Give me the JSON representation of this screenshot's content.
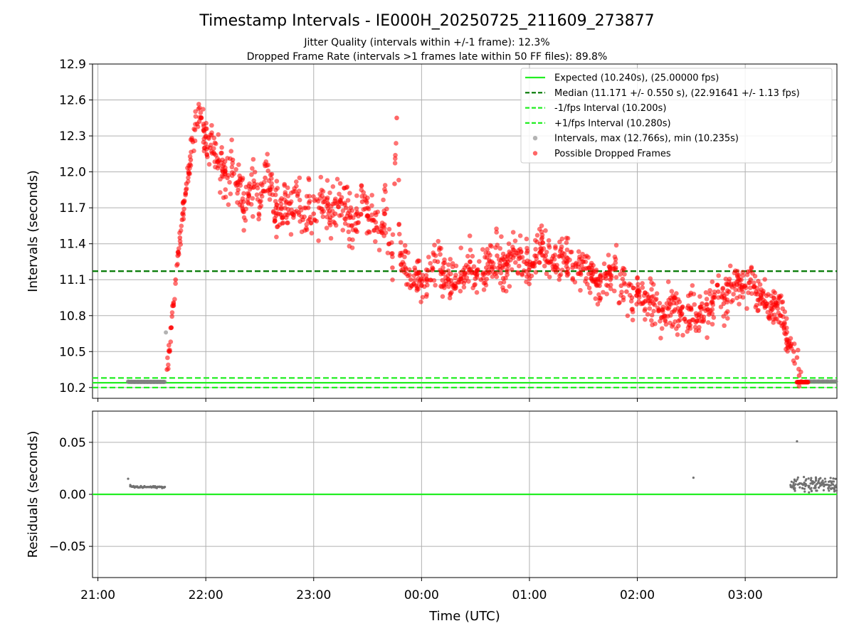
{
  "title": "Timestamp Intervals - IE000H_20250725_211609_273877",
  "subtitle_1": "Jitter Quality (intervals within +/-1 frame): 12.3%",
  "subtitle_2": "Dropped Frame Rate (intervals >1 frames late within 50 FF files): 89.8%",
  "colors": {
    "expected": "#22ee22",
    "median": "#007700",
    "bounds": "#22ee22",
    "intervals": "#808080",
    "dropped": "#ff0000",
    "grid": "#b0b0b0"
  },
  "chart_data": [
    {
      "type": "scatter",
      "name": "intervals",
      "xlabel": "",
      "ylabel": "Intervals (seconds)",
      "x_unit": "hours since 21:00 UTC",
      "xlim": [
        20.95,
        27.85
      ],
      "ylim": [
        10.11,
        12.9
      ],
      "yticks": [
        10.2,
        10.5,
        10.8,
        11.1,
        11.4,
        11.7,
        12.0,
        12.3,
        12.6,
        12.9
      ],
      "ytick_labels": [
        "10.2",
        "10.5",
        "10.8",
        "11.1",
        "11.4",
        "11.7",
        "12.0",
        "12.3",
        "12.6",
        "12.9"
      ],
      "grid": true,
      "legend_position": "top-right",
      "hlines": [
        {
          "label": "Expected (10.240s), (25.00000 fps)",
          "y": 10.24,
          "style": "solid",
          "color": "#22ee22"
        },
        {
          "label": "Median (11.171 +/- 0.550 s), (22.91641 +/- 1.13 fps)",
          "y": 11.171,
          "style": "dashed",
          "color": "#007700"
        },
        {
          "label": "-1/fps Interval (10.200s)",
          "y": 10.2,
          "style": "dashed",
          "color": "#22ee22"
        },
        {
          "label": "+1/fps Interval (10.280s)",
          "y": 10.28,
          "style": "dashed",
          "color": "#22ee22"
        }
      ],
      "series": [
        {
          "name": "Intervals, max (12.766s), min (10.235s)",
          "color": "#808080",
          "approximate": true,
          "x": [
            21.28,
            21.31,
            21.34,
            21.37,
            21.4,
            21.43,
            21.46,
            21.49,
            21.52,
            21.55,
            21.58,
            21.61,
            21.63,
            27.56,
            27.6,
            27.64,
            27.68,
            27.72,
            27.76,
            27.8,
            27.84
          ],
          "y": [
            10.25,
            10.248,
            10.247,
            10.247,
            10.247,
            10.247,
            10.247,
            10.247,
            10.247,
            10.247,
            10.247,
            10.247,
            10.66,
            10.25,
            10.25,
            10.25,
            10.25,
            10.25,
            10.25,
            10.25,
            10.25
          ]
        },
        {
          "name": "Possible Dropped Frames",
          "color": "#ff0000",
          "approximate": true,
          "x": [
            21.64,
            21.66,
            21.68,
            21.7,
            21.72,
            21.74,
            21.76,
            21.78,
            21.8,
            21.82,
            21.84,
            21.86,
            21.88,
            21.9,
            21.92,
            21.94,
            21.96,
            21.98,
            22.0,
            22.04,
            22.08,
            22.12,
            22.16,
            22.2,
            22.25,
            22.3,
            22.35,
            22.4,
            22.45,
            22.5,
            22.55,
            22.6,
            22.65,
            22.7,
            22.75,
            22.8,
            22.85,
            22.9,
            22.95,
            23.0,
            23.05,
            23.1,
            23.15,
            23.2,
            23.25,
            23.3,
            23.35,
            23.4,
            23.45,
            23.5,
            23.55,
            23.6,
            23.63,
            23.66,
            23.7,
            23.73,
            23.75,
            23.77,
            23.8,
            23.85,
            23.9,
            23.95,
            24.0,
            24.05,
            24.1,
            24.15,
            24.2,
            24.25,
            24.3,
            24.35,
            24.4,
            24.45,
            24.5,
            24.55,
            24.6,
            24.65,
            24.7,
            24.75,
            24.8,
            24.85,
            24.9,
            24.95,
            25.0,
            25.05,
            25.1,
            25.15,
            25.2,
            25.25,
            25.3,
            25.35,
            25.4,
            25.45,
            25.5,
            25.55,
            25.6,
            25.65,
            25.7,
            25.75,
            25.8,
            25.85,
            25.9,
            25.95,
            26.0,
            26.05,
            26.1,
            26.15,
            26.2,
            26.25,
            26.3,
            26.35,
            26.4,
            26.45,
            26.5,
            26.55,
            26.6,
            26.65,
            26.7,
            26.75,
            26.8,
            26.85,
            26.9,
            26.95,
            27.0,
            27.05,
            27.1,
            27.15,
            27.2,
            27.25,
            27.3,
            27.33,
            27.36,
            27.39,
            27.42,
            27.45,
            27.48,
            27.5,
            27.52
          ],
          "y": [
            10.35,
            10.5,
            10.7,
            10.9,
            11.1,
            11.3,
            11.45,
            11.6,
            11.75,
            11.9,
            12.0,
            12.1,
            12.25,
            12.35,
            12.4,
            12.42,
            12.45,
            12.35,
            12.3,
            12.2,
            12.15,
            12.05,
            12.0,
            11.95,
            12.1,
            11.85,
            11.75,
            11.8,
            11.9,
            11.75,
            11.95,
            11.85,
            11.7,
            11.7,
            11.75,
            11.65,
            11.8,
            11.6,
            11.7,
            11.65,
            11.7,
            11.75,
            11.6,
            11.65,
            11.75,
            11.7,
            11.55,
            11.65,
            11.75,
            11.7,
            11.6,
            11.5,
            11.55,
            11.65,
            11.4,
            11.2,
            11.9,
            12.45,
            11.3,
            11.2,
            11.1,
            11.15,
            11.05,
            11.1,
            11.2,
            11.25,
            11.15,
            11.1,
            11.05,
            11.1,
            11.2,
            11.25,
            11.15,
            11.1,
            11.2,
            11.25,
            11.3,
            11.2,
            11.25,
            11.35,
            11.3,
            11.25,
            11.2,
            11.3,
            11.4,
            11.3,
            11.25,
            11.2,
            11.3,
            11.25,
            11.2,
            11.15,
            11.25,
            11.2,
            11.1,
            11.05,
            11.15,
            11.1,
            11.2,
            11.05,
            11.0,
            10.95,
            11.0,
            10.9,
            10.95,
            10.9,
            10.85,
            10.8,
            10.9,
            10.85,
            10.8,
            10.75,
            10.85,
            10.8,
            10.9,
            10.85,
            10.95,
            11.0,
            10.9,
            11.0,
            11.05,
            11.1,
            11.05,
            11.1,
            11.0,
            10.95,
            10.9,
            10.85,
            10.9,
            10.8,
            10.7,
            10.6,
            10.55,
            10.5,
            10.45,
            10.3,
            10.25
          ]
        }
      ]
    },
    {
      "type": "scatter",
      "name": "residuals",
      "xlabel": "Time (UTC)",
      "ylabel": "Residuals (seconds)",
      "x_unit": "hours since 21:00 UTC",
      "xlim": [
        20.95,
        27.85
      ],
      "ylim": [
        -0.08,
        0.08
      ],
      "yticks": [
        -0.05,
        0.0,
        0.05
      ],
      "ytick_labels": [
        "−0.05",
        "0.00",
        "0.05"
      ],
      "xticks": [
        21,
        22,
        23,
        24,
        25,
        26,
        27
      ],
      "xtick_labels": [
        "21:00",
        "22:00",
        "23:00",
        "00:00",
        "01:00",
        "02:00",
        "03:00"
      ],
      "grid": true,
      "hlines": [
        {
          "y": 0.0,
          "style": "solid",
          "color": "#22ee22"
        }
      ],
      "series": [
        {
          "name": "residuals",
          "color": "#707070",
          "approximate": true,
          "x": [
            21.28,
            21.3,
            21.33,
            21.36,
            21.39,
            21.42,
            21.45,
            21.48,
            21.51,
            21.54,
            21.57,
            21.6,
            21.62,
            26.52,
            27.42,
            27.46,
            27.48,
            27.5,
            27.53,
            27.56,
            27.59,
            27.62,
            27.65,
            27.68,
            27.71,
            27.74,
            27.77,
            27.8,
            27.83
          ],
          "y": [
            0.015,
            0.009,
            0.008,
            0.007,
            0.007,
            0.007,
            0.007,
            0.007,
            0.007,
            0.007,
            0.007,
            0.007,
            0.007,
            0.016,
            0.009,
            0.006,
            0.051,
            0.01,
            0.006,
            0.01,
            0.008,
            0.012,
            0.006,
            0.013,
            0.009,
            0.015,
            0.006,
            0.011,
            0.008
          ]
        }
      ]
    }
  ]
}
